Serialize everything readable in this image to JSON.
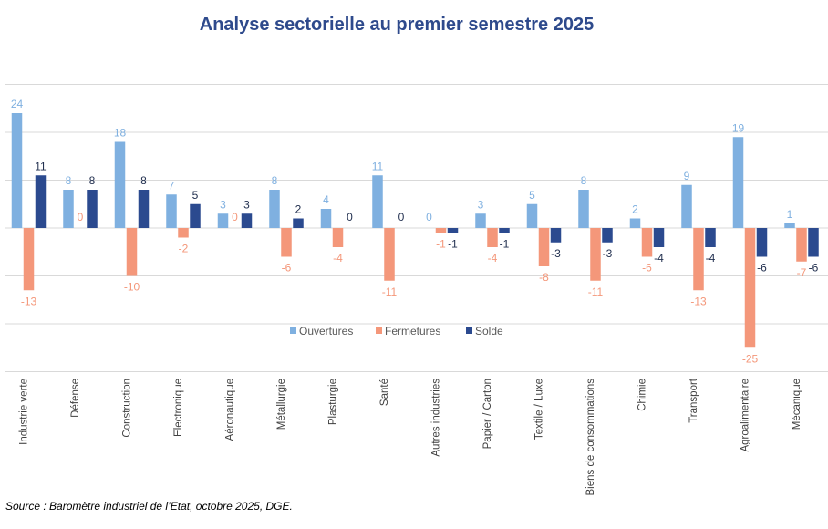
{
  "chart_data": {
    "type": "bar",
    "title": "Analyse sectorielle au premier semestre 2025",
    "source": "Source : Baromètre industriel de l’Etat, octobre 2025, DGE.",
    "xlabel": "",
    "ylabel": "",
    "ylim": [
      -30,
      30
    ],
    "grid": true,
    "legend_position": "center",
    "categories": [
      "Industrie verte",
      "Défense",
      "Construction",
      "Electronique",
      "Aéronautique",
      "Métallurgie",
      "Plasturgie",
      "Santé",
      "Autres industries",
      "Papier / Carton",
      "Textile / Luxe",
      "Biens de consommations",
      "Chimie",
      "Transport",
      "Agroalimentaire",
      "Mécanique"
    ],
    "series": [
      {
        "name": "Ouvertures",
        "color": "#7fb0e0",
        "values": [
          24,
          8,
          18,
          7,
          3,
          8,
          4,
          11,
          0,
          3,
          5,
          8,
          2,
          9,
          19,
          1
        ]
      },
      {
        "name": "Fermetures",
        "color": "#f4977a",
        "values": [
          -13,
          0,
          -10,
          -2,
          0,
          -6,
          -4,
          -11,
          -1,
          -4,
          -8,
          -11,
          -6,
          -13,
          -25,
          -7
        ]
      },
      {
        "name": "Solde",
        "color": "#2b4a8f",
        "values": [
          11,
          8,
          8,
          5,
          3,
          2,
          0,
          0,
          -1,
          -1,
          -3,
          -3,
          -4,
          -4,
          -6,
          -6
        ]
      }
    ]
  }
}
